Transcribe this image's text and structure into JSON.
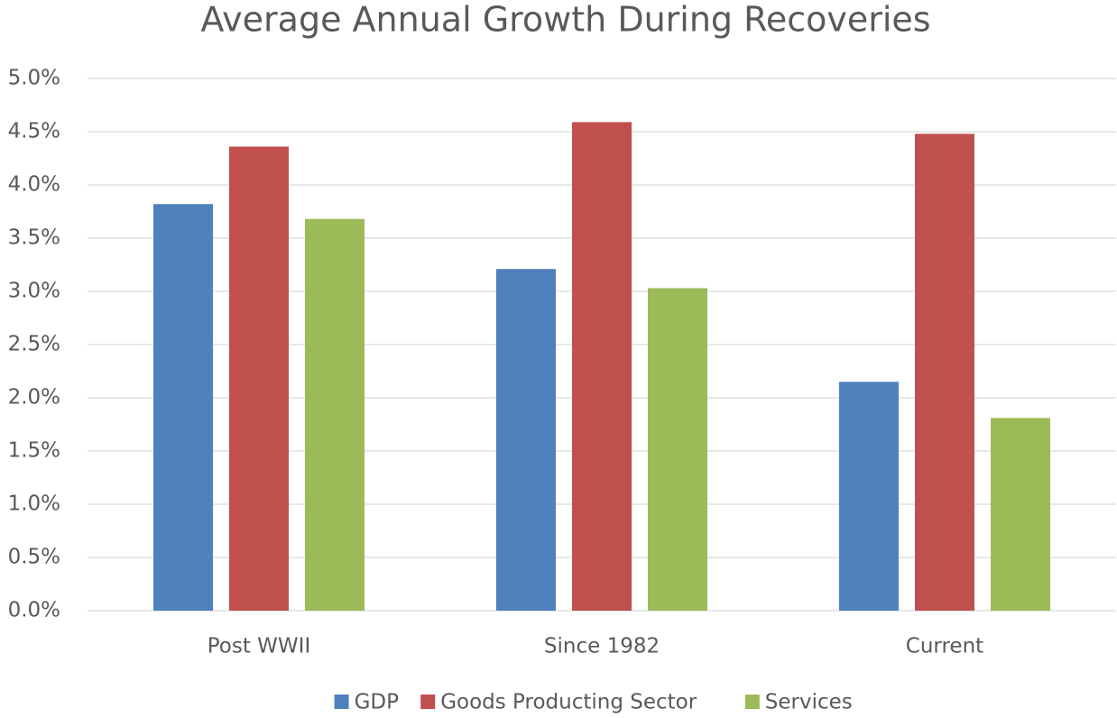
{
  "chart_data": {
    "type": "bar",
    "title": "Average Annual Growth During Recoveries",
    "categories": [
      "Post WWII",
      "Since 1982",
      "Current"
    ],
    "series": [
      {
        "name": "GDP",
        "color": "#4f81bd",
        "values": [
          3.82,
          3.21,
          2.15
        ]
      },
      {
        "name": "Goods Producting Sector",
        "color": "#c0504d",
        "values": [
          4.36,
          4.59,
          4.48
        ]
      },
      {
        "name": "Services",
        "color": "#9bbb59",
        "values": [
          3.68,
          3.03,
          1.81
        ]
      }
    ],
    "ylim": [
      0,
      5
    ],
    "yticks": [
      {
        "value": 0,
        "label": "0.0%"
      },
      {
        "value": 0.5,
        "label": "0.5%"
      },
      {
        "value": 1,
        "label": "1.0%"
      },
      {
        "value": 1.5,
        "label": "1.5%"
      },
      {
        "value": 2,
        "label": "2.0%"
      },
      {
        "value": 2.5,
        "label": "2.5%"
      },
      {
        "value": 3,
        "label": "3.0%"
      },
      {
        "value": 3.5,
        "label": "3.5%"
      },
      {
        "value": 4,
        "label": "4.0%"
      },
      {
        "value": 4.5,
        "label": "4.5%"
      },
      {
        "value": 5,
        "label": "5.0%"
      }
    ],
    "grid": true,
    "legend": "bottom"
  }
}
